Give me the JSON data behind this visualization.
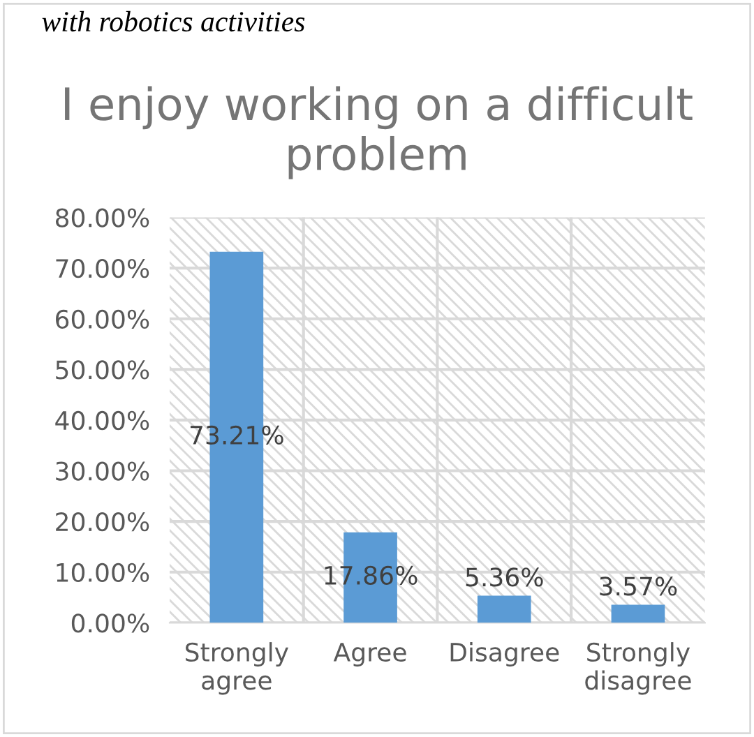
{
  "chart_data": {
    "type": "bar",
    "title": "I enjoy working on a difficult problem",
    "annotations": [
      "with robotics activities"
    ],
    "categories": [
      "Strongly\nagree",
      "Agree",
      "Disagree",
      "Strongly\ndisagree"
    ],
    "values": [
      73.21,
      17.86,
      5.36,
      3.57
    ],
    "value_labels": [
      "73.21%",
      "17.86%",
      "5.36%",
      "3.57%"
    ],
    "color": "#5b9bd5",
    "ylim": [
      0,
      80
    ],
    "yticks": [
      {
        "value": 0,
        "label": "0.00%"
      },
      {
        "value": 10,
        "label": "10.00%"
      },
      {
        "value": 20,
        "label": "20.00%"
      },
      {
        "value": 30,
        "label": "30.00%"
      },
      {
        "value": 40,
        "label": "40.00%"
      },
      {
        "value": 50,
        "label": "50.00%"
      },
      {
        "value": 60,
        "label": "60.00%"
      },
      {
        "value": 70,
        "label": "70.00%"
      },
      {
        "value": 80,
        "label": "80.00%"
      }
    ],
    "grid": true
  }
}
